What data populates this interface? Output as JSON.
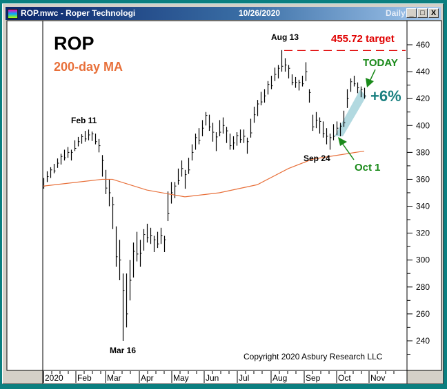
{
  "window": {
    "title": "ROP.mwc - Roper Technologi",
    "date": "10/26/2020",
    "period": "Daily",
    "minimize": "_",
    "maximize": "□",
    "close": "X"
  },
  "colors": {
    "bars": "#000000",
    "ma": "#e8703a",
    "target": "#e00000",
    "green": "#1a8a1a",
    "pct": "#1a8080",
    "band": "#9fd0d8"
  },
  "chart_data": {
    "type": "bar",
    "title": "ROP",
    "subtitle": "200-day MA",
    "yticks": [
      240,
      260,
      280,
      300,
      320,
      340,
      360,
      380,
      400,
      420,
      440,
      460
    ],
    "ylim": [
      230,
      472
    ],
    "xticks": [
      "2020",
      "Feb",
      "Mar",
      "Apr",
      "May",
      "Jun",
      "Jul",
      "Aug",
      "Sep",
      "Oct",
      "Nov"
    ],
    "closes": [
      357,
      362,
      365,
      368,
      372,
      375,
      378,
      380,
      378,
      385,
      388,
      390,
      392,
      393,
      392,
      390,
      385,
      370,
      358,
      350,
      335,
      310,
      300,
      265,
      270,
      285,
      300,
      310,
      305,
      315,
      320,
      318,
      312,
      315,
      318,
      312,
      340,
      350,
      352,
      362,
      368,
      360,
      370,
      380,
      388,
      392,
      398,
      405,
      402,
      395,
      388,
      398,
      400,
      393,
      388,
      387,
      390,
      392,
      392,
      385,
      398,
      408,
      413,
      420,
      422,
      428,
      432,
      438,
      440,
      448,
      445,
      440,
      434,
      432,
      430,
      433,
      440,
      422,
      402,
      404,
      400,
      397,
      392,
      388,
      395,
      398,
      397,
      405,
      420,
      430,
      433,
      428,
      425,
      424
    ],
    "ranges": [
      8,
      8,
      8,
      7,
      7,
      8,
      8,
      8,
      8,
      8,
      7,
      7,
      8,
      8,
      7,
      8,
      10,
      16,
      18,
      20,
      24,
      30,
      30,
      50,
      40,
      30,
      26,
      22,
      20,
      16,
      14,
      12,
      12,
      12,
      12,
      12,
      22,
      16,
      12,
      12,
      12,
      14,
      12,
      12,
      12,
      12,
      12,
      10,
      12,
      14,
      14,
      12,
      12,
      12,
      12,
      10,
      10,
      10,
      10,
      12,
      14,
      12,
      12,
      10,
      10,
      10,
      10,
      10,
      10,
      16,
      10,
      10,
      8,
      8,
      8,
      8,
      14,
      10,
      12,
      12,
      12,
      12,
      12,
      12,
      12,
      10,
      10,
      12,
      14,
      10,
      8,
      8,
      8,
      8
    ],
    "ma_200": [
      [
        0,
        355
      ],
      [
        17,
        360
      ],
      [
        20,
        360
      ],
      [
        30,
        352
      ],
      [
        41,
        347
      ],
      [
        51,
        350
      ],
      [
        62,
        356
      ],
      [
        71,
        368
      ],
      [
        78,
        375
      ],
      [
        93,
        381
      ]
    ],
    "target": {
      "value": 455.72,
      "label": "455.72 target"
    },
    "annotations": {
      "feb11": "Feb 11",
      "mar16": "Mar 16",
      "aug13": "Aug 13",
      "sep24": "Sep 24",
      "oct1": "Oct 1",
      "today": "TODAY",
      "pct": "+6%"
    },
    "copyright": "Copyright 2020 Asbury Research LLC"
  }
}
